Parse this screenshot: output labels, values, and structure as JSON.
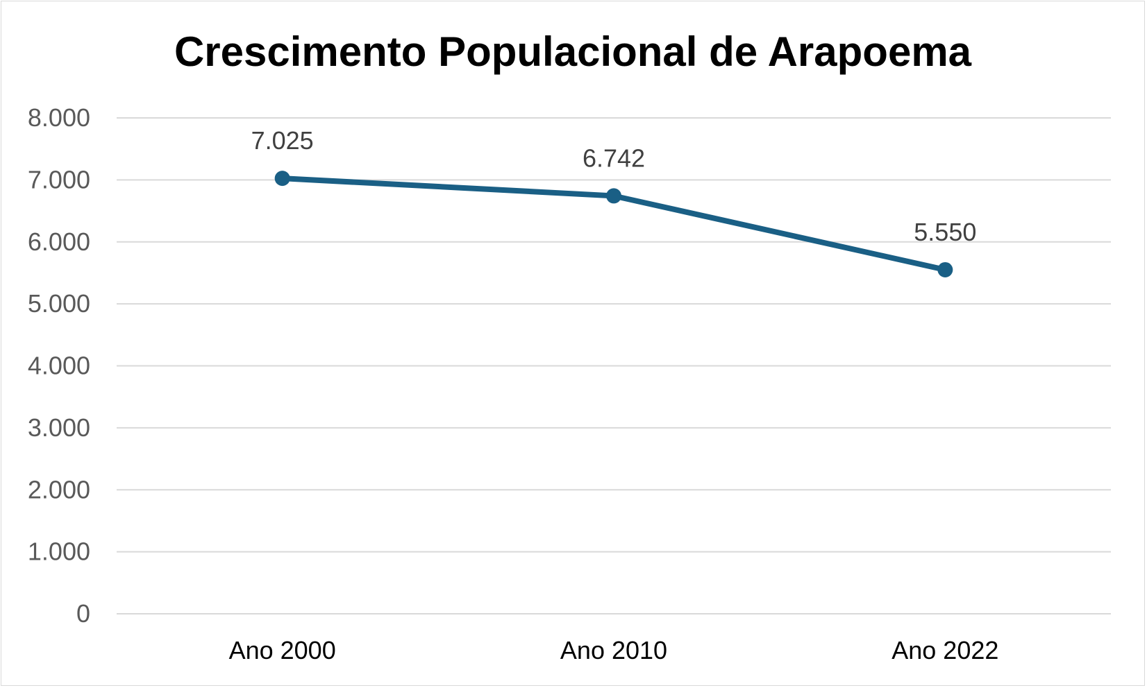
{
  "chart_data": {
    "type": "line",
    "title": "Crescimento Populacional de Arapoema",
    "categories": [
      "Ano 2000",
      "Ano 2010",
      "Ano 2022"
    ],
    "values": [
      7025,
      6742,
      5550
    ],
    "data_labels": [
      "7.025",
      "6.742",
      "5.550"
    ],
    "ylim": [
      0,
      8000
    ],
    "yticks": [
      0,
      1000,
      2000,
      3000,
      4000,
      5000,
      6000,
      7000,
      8000
    ],
    "ytick_labels": [
      "0",
      "1.000",
      "2.000",
      "3.000",
      "4.000",
      "5.000",
      "6.000",
      "7.000",
      "8.000"
    ],
    "grid": true,
    "legend": "none",
    "line_color": "#1a5f85",
    "grid_color": "#d9d9d9"
  }
}
